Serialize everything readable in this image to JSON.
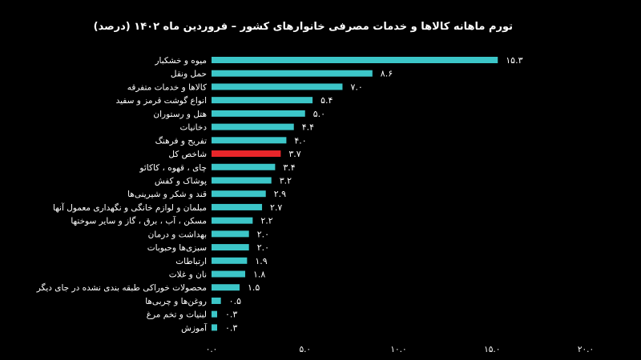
{
  "chart_data": {
    "type": "bar",
    "orientation": "horizontal",
    "title": "تورم ماهانه کالاها و خدمات مصرفی خانوارهای کشور – فروردین ماه ۱۴۰۲ (درصد)",
    "categories": [
      "میوه و خشکبار",
      "حمل ونقل",
      "کالاها و خدمات متفرقه",
      "انواع گوشت قرمز و سفید",
      "هتل و رستوران",
      "دخانیات",
      "تفریح و فرهنگ",
      "شاخص کل",
      "چای ، قهوه ، کاکائو",
      "پوشاک و کفش",
      "قند و شکر و شیرینی‌ها",
      "مبلمان و لوازم خانگی و نگهداری معمول آنها",
      "مسکن ، آب ، برق ، گاز و سایر سوختها",
      "بهداشت و درمان",
      "سبزی‌ها وحبوبات",
      "ارتباطات",
      "نان و غلات",
      "محصولات خوراکی طبقه بندی نشده در جای دیگر",
      "روغن‌ها و چربی‌ها",
      "لبنیات و تخم مرغ",
      "آموزش"
    ],
    "values": [
      15.3,
      8.6,
      7.0,
      5.4,
      5.0,
      4.4,
      4.0,
      3.7,
      3.4,
      3.2,
      2.9,
      2.7,
      2.2,
      2.0,
      2.0,
      1.9,
      1.8,
      1.5,
      0.5,
      0.3,
      0.3
    ],
    "value_labels": [
      "۱۵.۳",
      "۸.۶",
      "۷.۰",
      "۵.۴",
      "۵.۰",
      "۴.۴",
      "۴.۰",
      "۳.۷",
      "۳.۴",
      "۳.۲",
      "۲.۹",
      "۲.۷",
      "۲.۲",
      "۲.۰",
      "۲.۰",
      "۱.۹",
      "۱.۸",
      "۱.۵",
      "۰.۵",
      "۰.۳",
      "۰.۳"
    ],
    "highlight_index": 7,
    "xlim": [
      0,
      20
    ],
    "x_ticks": [
      0,
      5,
      10,
      15,
      20
    ],
    "x_tick_labels": [
      "۰.۰",
      "۵.۰",
      "۱۰.۰",
      "۱۵.۰",
      "۲۰.۰"
    ],
    "grid": false,
    "colors": {
      "bar": "#3cc6c8",
      "highlight": "#e8262a",
      "background": "#000000",
      "text": "#ffffff"
    }
  }
}
